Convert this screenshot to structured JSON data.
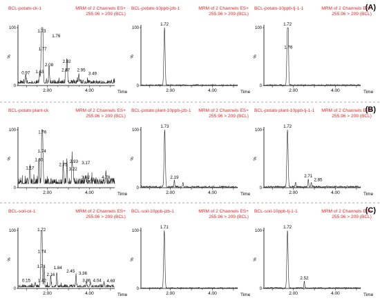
{
  "colors": {
    "header_red": "#e8262a",
    "trace": "#222222",
    "axis": "#000000",
    "divider": "#888888"
  },
  "rows": [
    {
      "label": "(A)"
    },
    {
      "label": "(B)"
    },
    {
      "label": "(C)"
    }
  ],
  "chart_data": [
    {
      "type": "line",
      "row": 0,
      "col": 0,
      "title": "BCL-potato-ck-1",
      "info": [
        "MRM of 2 Channels ES+",
        "255.96 > 209 (BCL)"
      ],
      "ylabel": "%",
      "xlabel": "Time",
      "ylim": [
        0,
        100
      ],
      "xlim": [
        0.6,
        5.2
      ],
      "yticks": [
        0,
        100
      ],
      "xticks": [
        {
          "value": 2.0,
          "label": "2.00"
        },
        {
          "value": 4.0,
          "label": "4.00"
        }
      ],
      "baseline": 8,
      "noise": 4,
      "seed": 11,
      "peaks": [
        {
          "x": 0.97,
          "y": 16,
          "label": "0.97"
        },
        {
          "x": 1.63,
          "y": 18,
          "label": "1.63"
        },
        {
          "x": 1.73,
          "y": 88,
          "label": "1.73"
        },
        {
          "x": 1.76,
          "y": 80,
          "label": "1.76"
        },
        {
          "x": 1.77,
          "y": 57,
          "label": "1.77"
        },
        {
          "x": 2.08,
          "y": 30,
          "label": "2.08"
        },
        {
          "x": 2.87,
          "y": 21,
          "label": "2.87"
        },
        {
          "x": 2.92,
          "y": 36,
          "label": "2.92"
        },
        {
          "x": 2.95,
          "y": 21,
          "label": "2.95"
        },
        {
          "x": 3.49,
          "y": 15,
          "label": "3.49"
        }
      ]
    },
    {
      "type": "line",
      "row": 0,
      "col": 1,
      "title": "BCL-potato-10ppb-jzb-1",
      "info": [
        "MRM of 2 Channels ES+",
        "255.96 > 209 (BCL)"
      ],
      "ylabel": "%",
      "xlabel": "Time",
      "ylim": [
        0,
        100
      ],
      "xlim": [
        0.6,
        5.2
      ],
      "yticks": [
        0,
        100
      ],
      "xticks": [
        {
          "value": 2.0,
          "label": "2.00"
        },
        {
          "value": 4.0,
          "label": "4.00"
        }
      ],
      "baseline": 1,
      "noise": 1,
      "seed": 23,
      "peaks": [
        {
          "x": 1.72,
          "y": 100,
          "label": "1.72"
        }
      ]
    },
    {
      "type": "line",
      "row": 0,
      "col": 2,
      "title": "BCL-potato-10ppb-tj-1-1",
      "info": [
        "MRM of 2 Channels ES+",
        "255.96 > 209 (BCL)"
      ],
      "ylabel": "%",
      "xlabel": "Time",
      "ylim": [
        0,
        100
      ],
      "xlim": [
        0.6,
        5.2
      ],
      "yticks": [
        0,
        100
      ],
      "xticks": [
        {
          "value": 2.0,
          "label": "2.00"
        },
        {
          "value": 4.0,
          "label": "4.00"
        }
      ],
      "baseline": 1,
      "noise": 1,
      "seed": 37,
      "peaks": [
        {
          "x": 1.72,
          "y": 100,
          "label": "1.72"
        },
        {
          "x": 1.76,
          "y": 60,
          "label": "1.76"
        }
      ]
    },
    {
      "type": "line",
      "row": 1,
      "col": 0,
      "title": "BCL-potato plant-ck",
      "info": [
        "MRM of 2 Channels ES+",
        "255.96 > 209 (BCL)"
      ],
      "ylabel": "%",
      "xlabel": "Time",
      "ylim": [
        0,
        100
      ],
      "xlim": [
        0.6,
        5.2
      ],
      "yticks": [
        0,
        100
      ],
      "xticks": [
        {
          "value": 2.0,
          "label": "2.00"
        },
        {
          "value": 4.0,
          "label": "4.00"
        }
      ],
      "baseline": 14,
      "noise": 7,
      "seed": 51,
      "peaks": [
        {
          "x": 1.17,
          "y": 28,
          "label": "1.17"
        },
        {
          "x": 1.6,
          "y": 42,
          "label": "1.60"
        },
        {
          "x": 1.74,
          "y": 57,
          "label": "1.74"
        },
        {
          "x": 1.76,
          "y": 90,
          "label": "1.76"
        },
        {
          "x": 2.75,
          "y": 34,
          "label": "2.75"
        },
        {
          "x": 2.93,
          "y": 39,
          "label": "2.93"
        },
        {
          "x": 3.17,
          "y": 37,
          "label": "3.17"
        },
        {
          "x": 3.22,
          "y": 26,
          "label": "3.22"
        },
        {
          "x": 3.82,
          "y": 12,
          "label": "3.82"
        },
        {
          "x": 4.78,
          "y": 12,
          "label": "4.78"
        }
      ]
    },
    {
      "type": "line",
      "row": 1,
      "col": 1,
      "title": "BCL-potato plant-10ppb-jzb-1",
      "info": [
        "MRM of 2 Channels ES+",
        "255.96 > 209 (BCL)"
      ],
      "ylabel": "%",
      "xlabel": "Time",
      "ylim": [
        0,
        100
      ],
      "xlim": [
        0.6,
        5.2
      ],
      "yticks": [
        0,
        100
      ],
      "xticks": [
        {
          "value": 2.0,
          "label": "2.00"
        },
        {
          "value": 4.0,
          "label": "4.00"
        }
      ],
      "baseline": 2,
      "noise": 1.5,
      "seed": 63,
      "peaks": [
        {
          "x": 1.73,
          "y": 100,
          "label": "1.73"
        },
        {
          "x": 2.19,
          "y": 12,
          "label": "2.19"
        },
        {
          "x": 2.6,
          "y": 8
        }
      ]
    },
    {
      "type": "line",
      "row": 1,
      "col": 2,
      "title": "BCL-potato plant-10ppb-tj-1-1",
      "info": [
        "MRM of 2 Channels ES+",
        "255.96 > 209 (BCL)"
      ],
      "ylabel": "%",
      "xlabel": "Time",
      "ylim": [
        0,
        100
      ],
      "xlim": [
        0.6,
        5.2
      ],
      "yticks": [
        0,
        100
      ],
      "xticks": [
        {
          "value": 2.0,
          "label": "2.00"
        },
        {
          "value": 4.0,
          "label": "4.00"
        }
      ],
      "baseline": 2,
      "noise": 1.5,
      "seed": 77,
      "peaks": [
        {
          "x": 1.72,
          "y": 100,
          "label": "1.72"
        },
        {
          "x": 2.1,
          "y": 8
        },
        {
          "x": 2.71,
          "y": 14,
          "label": "2.71"
        },
        {
          "x": 2.85,
          "y": 8,
          "label": "2.85"
        }
      ]
    },
    {
      "type": "line",
      "row": 2,
      "col": 0,
      "title": "BCL-soil-ck-1",
      "info": [
        "MRM of 2 Channels ES+",
        "255.96 > 209 (BCL)"
      ],
      "ylabel": "%",
      "xlabel": "Time",
      "ylim": [
        0,
        100
      ],
      "xlim": [
        0.6,
        5.2
      ],
      "yticks": [
        0,
        100
      ],
      "xticks": [
        {
          "value": 2.0,
          "label": "2.00"
        },
        {
          "value": 4.0,
          "label": "4.00"
        }
      ],
      "baseline": 5,
      "noise": 3,
      "seed": 89,
      "peaks": [
        {
          "x": 0.15,
          "y": 8,
          "label": "0.15"
        },
        {
          "x": 1.42,
          "y": 8,
          "label": "1.42"
        },
        {
          "x": 1.71,
          "y": 32,
          "label": "1.71"
        },
        {
          "x": 1.72,
          "y": 95,
          "label": "1.72"
        },
        {
          "x": 1.74,
          "y": 58,
          "label": "1.74"
        },
        {
          "x": 1.84,
          "y": 30,
          "label": "1.84"
        },
        {
          "x": 2.16,
          "y": 18,
          "label": "2.16"
        },
        {
          "x": 2.45,
          "y": 24,
          "label": "2.45"
        },
        {
          "x": 3.36,
          "y": 20,
          "label": "3.36"
        },
        {
          "x": 3.86,
          "y": 8,
          "label": "3.86"
        },
        {
          "x": 4.04,
          "y": 8,
          "label": "4.04"
        },
        {
          "x": 4.69,
          "y": 7,
          "label": "4.69"
        }
      ]
    },
    {
      "type": "line",
      "row": 2,
      "col": 1,
      "title": "BCL-soil-10ppb-jzb-1",
      "info": [
        "MRM of 2 Channels ES+",
        "255.96 > 209 (BCL)"
      ],
      "ylabel": "%",
      "xlabel": "Time",
      "ylim": [
        0,
        100
      ],
      "xlim": [
        0.6,
        5.2
      ],
      "yticks": [
        0,
        100
      ],
      "xticks": [
        {
          "value": 2.0,
          "label": "2.00"
        },
        {
          "value": 4.0,
          "label": "4.00"
        }
      ],
      "baseline": 1,
      "noise": 0.8,
      "seed": 97,
      "peaks": [
        {
          "x": 1.71,
          "y": 100,
          "label": "1.71"
        }
      ]
    },
    {
      "type": "line",
      "row": 2,
      "col": 2,
      "title": "BCL-soil-10ppb-tj-1-1",
      "info": [
        "MRM of 2 Channels ES+",
        "255.96 > 209 (BCL)"
      ],
      "ylabel": "%",
      "xlabel": "Time",
      "ylim": [
        0,
        100
      ],
      "xlim": [
        0.6,
        5.2
      ],
      "yticks": [
        0,
        100
      ],
      "xticks": [
        {
          "value": 2.0,
          "label": "2.00"
        },
        {
          "value": 4.0,
          "label": "4.00"
        }
      ],
      "baseline": 1,
      "noise": 1,
      "seed": 103,
      "peaks": [
        {
          "x": 1.72,
          "y": 100,
          "label": "1.72"
        },
        {
          "x": 2.52,
          "y": 12,
          "label": "2.52"
        }
      ]
    }
  ]
}
